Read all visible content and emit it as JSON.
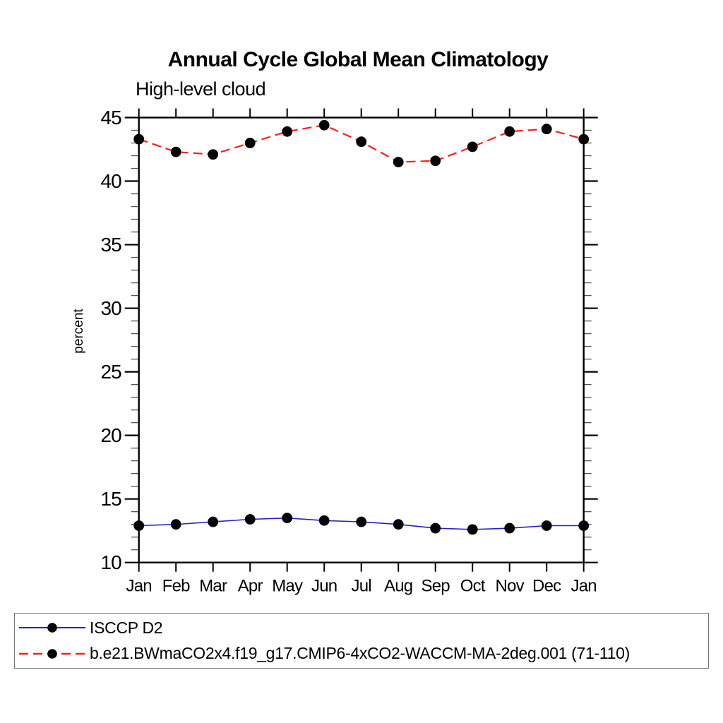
{
  "chart_data": {
    "type": "line",
    "title": "Annual Cycle Global Mean Climatology",
    "subtitle": "High-level cloud",
    "ylabel": "percent",
    "xlabel": "",
    "ylim": [
      10,
      45
    ],
    "y_major_tick_step": 5,
    "y_minor_tick_step": 1,
    "y_tick_labels": [
      "10",
      "15",
      "20",
      "25",
      "30",
      "35",
      "40",
      "45"
    ],
    "categories": [
      "Jan",
      "Feb",
      "Mar",
      "Apr",
      "May",
      "Jun",
      "Jul",
      "Aug",
      "Sep",
      "Oct",
      "Nov",
      "Dec",
      "Jan"
    ],
    "grid": false,
    "legend_position": "bottom-left-box",
    "marker": {
      "shape": "circle",
      "color": "#000000"
    },
    "axis_color": "#000000",
    "series": [
      {
        "name": "ISCCP D2",
        "color": "#2222cc",
        "line_style": "solid",
        "values": [
          12.9,
          13.0,
          13.2,
          13.4,
          13.5,
          13.3,
          13.2,
          13.0,
          12.7,
          12.6,
          12.7,
          12.9,
          12.9
        ]
      },
      {
        "name": "b.e21.BWmaCO2x4.f19_g17.CMIP6-4xCO2-WACCM-MA-2deg.001 (71-110)",
        "color": "#fb2020",
        "line_style": "dashed",
        "values": [
          43.3,
          42.3,
          42.1,
          43.0,
          43.9,
          44.4,
          43.1,
          41.5,
          41.6,
          42.7,
          43.9,
          44.1,
          43.3
        ]
      }
    ]
  }
}
